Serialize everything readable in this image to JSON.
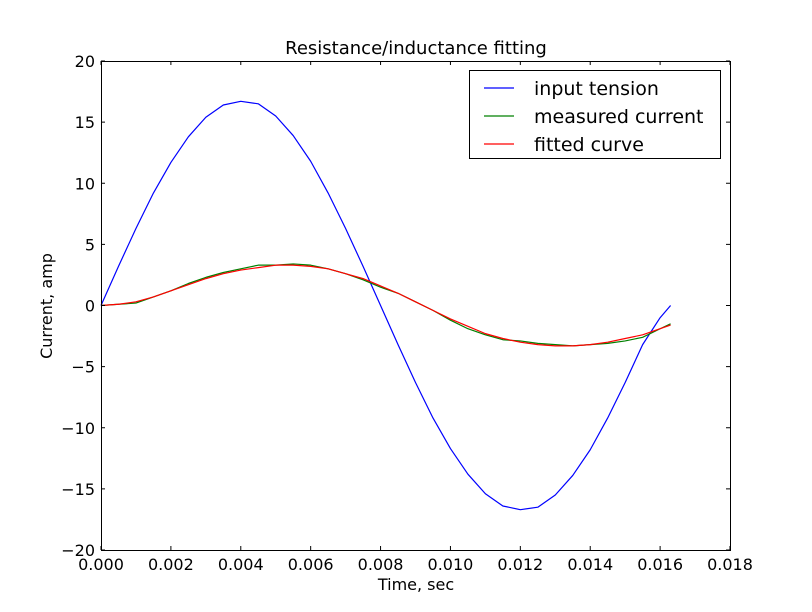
{
  "chart_data": {
    "type": "line",
    "title": "Resistance/inductance fitting",
    "xlabel": "Time, sec",
    "ylabel": "Current, amp",
    "xlim": [
      0,
      0.018
    ],
    "ylim": [
      -20,
      20
    ],
    "xticks": [
      0,
      0.002,
      0.004,
      0.006,
      0.008,
      0.01,
      0.012,
      0.014,
      0.016,
      0.018
    ],
    "xtick_labels": [
      "0.000",
      "0.002",
      "0.004",
      "0.006",
      "0.008",
      "0.010",
      "0.012",
      "0.014",
      "0.016",
      "0.018"
    ],
    "yticks": [
      -20,
      -15,
      -10,
      -5,
      0,
      5,
      10,
      15,
      20
    ],
    "ytick_labels": [
      "−20",
      "−15",
      "−10",
      "−5",
      "0",
      "5",
      "10",
      "15",
      "20"
    ],
    "grid": false,
    "legend_position": "upper right",
    "series": [
      {
        "name": "input tension",
        "color": "#0000ff",
        "x": [
          0,
          0.0005,
          0.001,
          0.0015,
          0.002,
          0.0025,
          0.003,
          0.0035,
          0.004,
          0.0045,
          0.005,
          0.0055,
          0.006,
          0.0065,
          0.007,
          0.0075,
          0.008,
          0.0085,
          0.009,
          0.0095,
          0.01,
          0.0105,
          0.011,
          0.0115,
          0.012,
          0.0125,
          0.013,
          0.0135,
          0.014,
          0.0145,
          0.015,
          0.0155,
          0.016,
          0.0163
        ],
        "y": [
          0,
          3.2,
          6.3,
          9.2,
          11.7,
          13.8,
          15.4,
          16.4,
          16.7,
          16.5,
          15.5,
          13.9,
          11.8,
          9.2,
          6.3,
          3.2,
          0.0,
          -3.2,
          -6.3,
          -9.2,
          -11.7,
          -13.8,
          -15.4,
          -16.4,
          -16.7,
          -16.5,
          -15.5,
          -13.9,
          -11.8,
          -9.2,
          -6.3,
          -3.2,
          -1.0,
          0.0
        ]
      },
      {
        "name": "measured current",
        "color": "#008000",
        "x": [
          0,
          0.0005,
          0.001,
          0.0015,
          0.002,
          0.0025,
          0.003,
          0.0035,
          0.004,
          0.0045,
          0.005,
          0.0055,
          0.006,
          0.0065,
          0.007,
          0.0075,
          0.008,
          0.0085,
          0.009,
          0.0095,
          0.01,
          0.0105,
          0.011,
          0.0115,
          0.012,
          0.0125,
          0.013,
          0.0135,
          0.014,
          0.0145,
          0.015,
          0.0155,
          0.016,
          0.0163
        ],
        "y": [
          0,
          0.1,
          0.2,
          0.7,
          1.2,
          1.8,
          2.3,
          2.7,
          3.0,
          3.3,
          3.3,
          3.4,
          3.3,
          3.0,
          2.6,
          2.1,
          1.5,
          1.0,
          0.3,
          -0.4,
          -1.2,
          -1.9,
          -2.4,
          -2.8,
          -2.9,
          -3.1,
          -3.2,
          -3.3,
          -3.2,
          -3.1,
          -2.9,
          -2.6,
          -1.9,
          -1.5
        ]
      },
      {
        "name": "fitted curve",
        "color": "#ff0000",
        "x": [
          0,
          0.0005,
          0.001,
          0.0015,
          0.002,
          0.0025,
          0.003,
          0.0035,
          0.004,
          0.0045,
          0.005,
          0.0055,
          0.006,
          0.0065,
          0.007,
          0.0075,
          0.008,
          0.0085,
          0.009,
          0.0095,
          0.01,
          0.0105,
          0.011,
          0.0115,
          0.012,
          0.0125,
          0.013,
          0.0135,
          0.014,
          0.0145,
          0.015,
          0.0155,
          0.016,
          0.0163
        ],
        "y": [
          0,
          0.1,
          0.3,
          0.7,
          1.2,
          1.7,
          2.2,
          2.6,
          2.9,
          3.1,
          3.3,
          3.3,
          3.2,
          3.0,
          2.6,
          2.2,
          1.6,
          1.0,
          0.3,
          -0.4,
          -1.1,
          -1.7,
          -2.3,
          -2.7,
          -3.0,
          -3.2,
          -3.3,
          -3.3,
          -3.2,
          -3.0,
          -2.7,
          -2.4,
          -1.9,
          -1.6
        ]
      }
    ]
  }
}
